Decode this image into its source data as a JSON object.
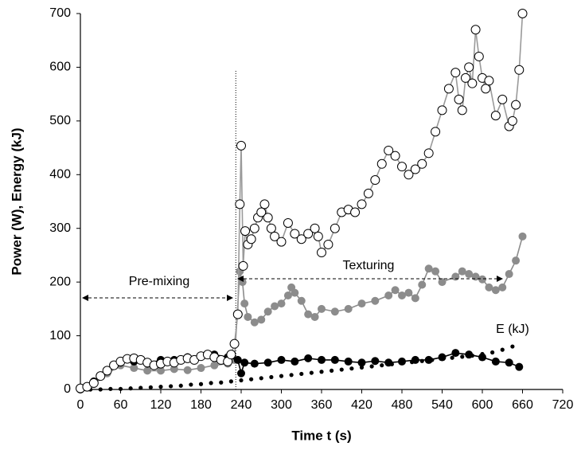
{
  "chart_data": {
    "type": "scatter",
    "x_label": "Time t (s)",
    "y_label": "Power (W), Energy (kJ)",
    "xlim": [
      0,
      720
    ],
    "xticks": [
      0,
      60,
      120,
      180,
      240,
      300,
      360,
      420,
      480,
      540,
      600,
      660,
      720
    ],
    "ylim": [
      0,
      700
    ],
    "yticks": [
      0,
      100,
      200,
      300,
      400,
      500,
      600,
      700
    ],
    "vline": 232,
    "annotations": [
      "Pre-mixing",
      "Texturing",
      "E (kJ)"
    ],
    "series": [
      {
        "marker": "dot",
        "color": "#000000",
        "line_color": "none",
        "x": [
          0,
          15,
          30,
          45,
          60,
          75,
          90,
          105,
          120,
          135,
          150,
          165,
          180,
          195,
          210,
          225,
          240,
          255,
          270,
          285,
          300,
          315,
          330,
          345,
          360,
          375,
          390,
          405,
          420,
          435,
          450,
          465,
          480,
          495,
          510,
          525,
          540,
          555,
          570,
          585,
          600,
          615,
          630,
          645
        ],
        "values": [
          0,
          0,
          0,
          1,
          1,
          2,
          3,
          4,
          5,
          6,
          7,
          9,
          10,
          12,
          13,
          15,
          17,
          19,
          21,
          23,
          25,
          27,
          29,
          31,
          33,
          35,
          37,
          39,
          41,
          43,
          45,
          47,
          49,
          51,
          53,
          55,
          57,
          59,
          61,
          63,
          66,
          69,
          74,
          80
        ]
      },
      {
        "marker": "filled",
        "color": "#8c8c8c",
        "line_color": "#8c8c8c",
        "x": [
          0,
          20,
          40,
          60,
          80,
          100,
          120,
          140,
          160,
          180,
          200,
          220,
          230,
          238,
          242,
          245,
          250,
          260,
          270,
          280,
          290,
          300,
          310,
          315,
          320,
          330,
          340,
          350,
          360,
          380,
          400,
          420,
          440,
          460,
          470,
          480,
          490,
          500,
          510,
          520,
          530,
          540,
          560,
          570,
          580,
          590,
          600,
          610,
          620,
          630,
          640,
          650,
          660
        ],
        "values": [
          0,
          10,
          30,
          45,
          40,
          35,
          35,
          38,
          36,
          40,
          45,
          48,
          55,
          220,
          200,
          160,
          135,
          125,
          130,
          145,
          155,
          160,
          175,
          190,
          180,
          165,
          140,
          135,
          150,
          145,
          150,
          160,
          165,
          175,
          185,
          175,
          180,
          170,
          195,
          225,
          220,
          200,
          210,
          220,
          215,
          210,
          205,
          190,
          185,
          190,
          215,
          240,
          285
        ]
      },
      {
        "marker": "filled",
        "color": "#000000",
        "line_color": "#000000",
        "x": [
          0,
          20,
          40,
          60,
          80,
          100,
          120,
          140,
          160,
          180,
          200,
          220,
          235,
          240,
          245,
          260,
          280,
          300,
          320,
          340,
          360,
          380,
          400,
          420,
          440,
          460,
          480,
          500,
          520,
          540,
          560,
          580,
          600,
          620,
          640,
          655
        ],
        "values": [
          0,
          15,
          35,
          50,
          52,
          48,
          55,
          55,
          60,
          62,
          65,
          60,
          55,
          30,
          50,
          48,
          50,
          55,
          52,
          58,
          55,
          55,
          52,
          50,
          53,
          50,
          52,
          55,
          55,
          60,
          68,
          65,
          60,
          52,
          50,
          42
        ]
      },
      {
        "marker": "open",
        "color": "#ffffff",
        "line_color": "#9a9a9a",
        "x": [
          0,
          10,
          20,
          30,
          40,
          50,
          60,
          70,
          80,
          90,
          100,
          110,
          120,
          130,
          140,
          150,
          160,
          170,
          180,
          190,
          200,
          210,
          220,
          225,
          230,
          235,
          238,
          240,
          243,
          246,
          250,
          255,
          260,
          265,
          270,
          275,
          280,
          285,
          290,
          300,
          310,
          320,
          330,
          340,
          350,
          355,
          360,
          370,
          380,
          390,
          400,
          410,
          420,
          430,
          440,
          450,
          460,
          470,
          480,
          490,
          500,
          510,
          520,
          530,
          540,
          550,
          560,
          565,
          570,
          575,
          580,
          585,
          590,
          595,
          600,
          605,
          610,
          620,
          630,
          640,
          645,
          650,
          655,
          660
        ],
        "values": [
          2,
          5,
          12,
          25,
          35,
          45,
          52,
          57,
          58,
          55,
          50,
          45,
          48,
          52,
          50,
          55,
          58,
          55,
          62,
          65,
          60,
          55,
          52,
          65,
          85,
          140,
          345,
          454,
          230,
          295,
          270,
          280,
          300,
          320,
          330,
          345,
          320,
          300,
          285,
          275,
          310,
          290,
          280,
          290,
          300,
          285,
          255,
          270,
          300,
          330,
          335,
          330,
          345,
          365,
          390,
          420,
          445,
          435,
          415,
          400,
          410,
          420,
          440,
          480,
          520,
          560,
          590,
          540,
          520,
          580,
          600,
          570,
          670,
          620,
          580,
          560,
          575,
          510,
          540,
          490,
          500,
          530,
          595,
          700
        ]
      }
    ]
  }
}
